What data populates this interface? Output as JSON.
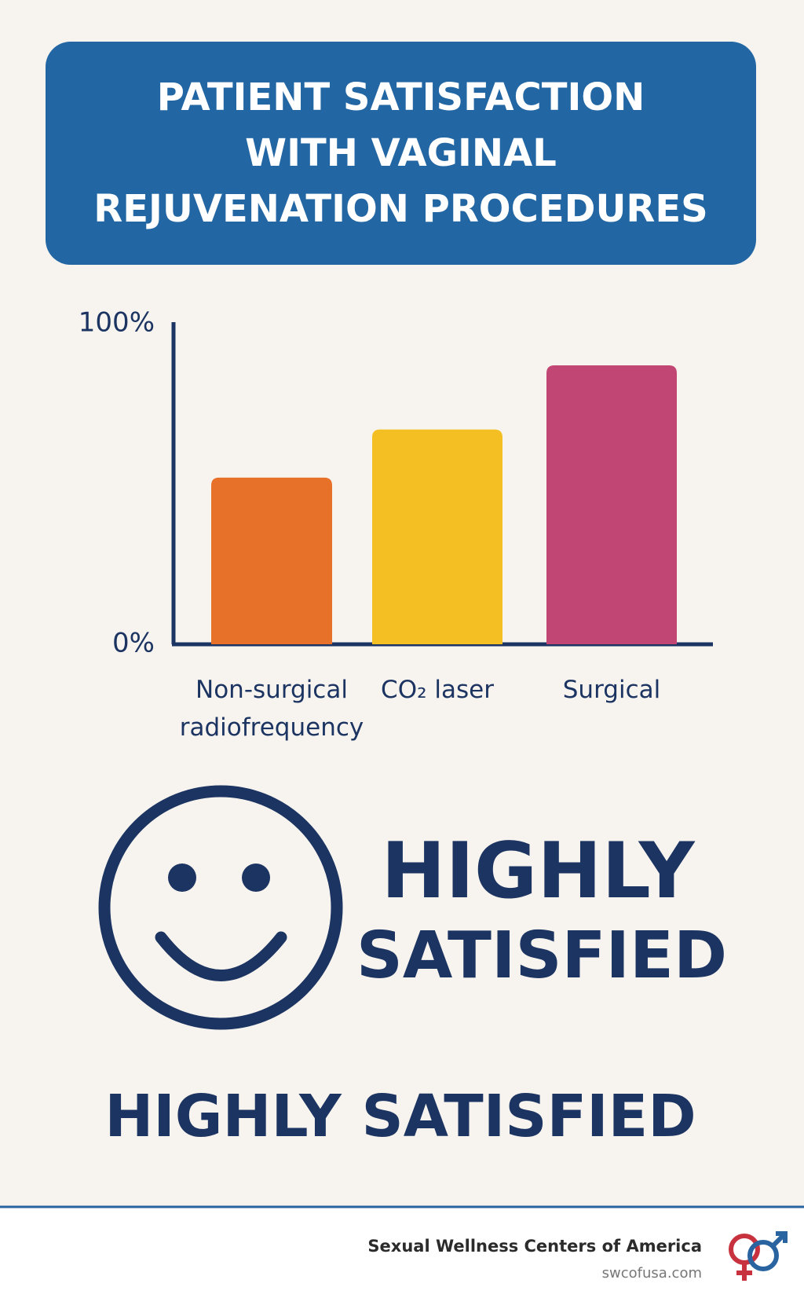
{
  "chart_data": {
    "type": "bar",
    "title": "PATIENT SATISFACTION\nWITH VAGINAL\nREJUVENATION PROCEDURES",
    "categories": [
      "Non-surgical radiofrequency",
      "CO₂ laser",
      "Surgical"
    ],
    "values": [
      52,
      67,
      87
    ],
    "colors": [
      "#e8712a",
      "#f4bf22",
      "#c24673"
    ],
    "ylim": [
      0,
      100
    ],
    "yticks": [
      {
        "value": 0,
        "label": "0%"
      },
      {
        "value": 100,
        "label": "100%"
      }
    ],
    "grid": false
  },
  "badge": {
    "lines": [
      "HIGHLY",
      "SATISFIED"
    ]
  },
  "banner": "HIGHLY SATISFIED",
  "footer": {
    "company": "Sexual Wellness Centers of America",
    "url": "swcofusa.com"
  }
}
